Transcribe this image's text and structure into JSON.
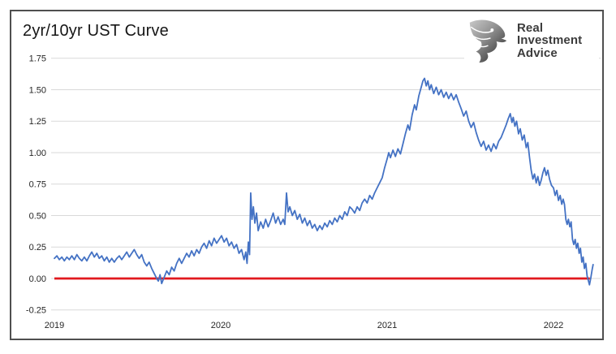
{
  "title": "2yr/10yr UST Curve",
  "logo": {
    "icon": "eagle-icon",
    "line1": "Real",
    "line2": "Investment",
    "line3": "Advice"
  },
  "chart_data": {
    "type": "line",
    "title": "2yr/10yr UST Curve",
    "xlabel": "",
    "ylabel": "",
    "grid": "horizontal",
    "legend": "none",
    "ylim": [
      -0.25,
      1.75
    ],
    "xlim": [
      2019.0,
      2022.35
    ],
    "y_ticks": [
      {
        "label": "1.75",
        "value": 1.75
      },
      {
        "label": "1.50",
        "value": 1.5
      },
      {
        "label": "1.25",
        "value": 1.25
      },
      {
        "label": "1.00",
        "value": 1.0
      },
      {
        "label": "0.75",
        "value": 0.75
      },
      {
        "label": "0.50",
        "value": 0.5
      },
      {
        "label": "0.25",
        "value": 0.25
      },
      {
        "label": "0.00",
        "value": 0.0
      },
      {
        "label": "-0.25",
        "value": -0.25
      }
    ],
    "x_ticks": [
      {
        "label": "2019",
        "value": 2019
      },
      {
        "label": "2020",
        "value": 2020
      },
      {
        "label": "2021",
        "value": 2021
      },
      {
        "label": "2022",
        "value": 2022
      }
    ],
    "colors": {
      "spread_line": "#4472c4",
      "zero_line": "#e1181e",
      "gridline": "#d9d9d9",
      "axis_text": "#262626"
    },
    "series": [
      {
        "name": "2yr/10yr UST spread",
        "color": "#4472c4",
        "points": [
          [
            2019.0,
            0.16
          ],
          [
            2019.015,
            0.18
          ],
          [
            2019.03,
            0.15
          ],
          [
            2019.045,
            0.17
          ],
          [
            2019.06,
            0.14
          ],
          [
            2019.075,
            0.17
          ],
          [
            2019.09,
            0.15
          ],
          [
            2019.105,
            0.18
          ],
          [
            2019.12,
            0.15
          ],
          [
            2019.135,
            0.19
          ],
          [
            2019.15,
            0.16
          ],
          [
            2019.165,
            0.14
          ],
          [
            2019.18,
            0.17
          ],
          [
            2019.195,
            0.14
          ],
          [
            2019.21,
            0.18
          ],
          [
            2019.225,
            0.21
          ],
          [
            2019.24,
            0.17
          ],
          [
            2019.255,
            0.2
          ],
          [
            2019.27,
            0.16
          ],
          [
            2019.285,
            0.18
          ],
          [
            2019.3,
            0.14
          ],
          [
            2019.315,
            0.17
          ],
          [
            2019.33,
            0.13
          ],
          [
            2019.345,
            0.16
          ],
          [
            2019.36,
            0.13
          ],
          [
            2019.375,
            0.16
          ],
          [
            2019.39,
            0.18
          ],
          [
            2019.405,
            0.15
          ],
          [
            2019.42,
            0.18
          ],
          [
            2019.435,
            0.21
          ],
          [
            2019.45,
            0.17
          ],
          [
            2019.465,
            0.2
          ],
          [
            2019.48,
            0.23
          ],
          [
            2019.495,
            0.19
          ],
          [
            2019.51,
            0.16
          ],
          [
            2019.525,
            0.19
          ],
          [
            2019.54,
            0.13
          ],
          [
            2019.555,
            0.1
          ],
          [
            2019.57,
            0.13
          ],
          [
            2019.585,
            0.08
          ],
          [
            2019.6,
            0.04
          ],
          [
            2019.615,
            0.0
          ],
          [
            2019.625,
            -0.02
          ],
          [
            2019.635,
            0.03
          ],
          [
            2019.645,
            -0.04
          ],
          [
            2019.66,
            0.01
          ],
          [
            2019.675,
            0.06
          ],
          [
            2019.69,
            0.03
          ],
          [
            2019.705,
            0.09
          ],
          [
            2019.72,
            0.06
          ],
          [
            2019.735,
            0.12
          ],
          [
            2019.75,
            0.16
          ],
          [
            2019.765,
            0.12
          ],
          [
            2019.78,
            0.16
          ],
          [
            2019.795,
            0.2
          ],
          [
            2019.81,
            0.17
          ],
          [
            2019.825,
            0.22
          ],
          [
            2019.84,
            0.18
          ],
          [
            2019.855,
            0.23
          ],
          [
            2019.87,
            0.2
          ],
          [
            2019.885,
            0.25
          ],
          [
            2019.9,
            0.28
          ],
          [
            2019.915,
            0.24
          ],
          [
            2019.93,
            0.3
          ],
          [
            2019.945,
            0.26
          ],
          [
            2019.96,
            0.32
          ],
          [
            2019.975,
            0.28
          ],
          [
            2019.99,
            0.31
          ],
          [
            2020.005,
            0.34
          ],
          [
            2020.02,
            0.29
          ],
          [
            2020.035,
            0.32
          ],
          [
            2020.05,
            0.26
          ],
          [
            2020.065,
            0.29
          ],
          [
            2020.08,
            0.24
          ],
          [
            2020.095,
            0.27
          ],
          [
            2020.11,
            0.2
          ],
          [
            2020.125,
            0.23
          ],
          [
            2020.14,
            0.15
          ],
          [
            2020.15,
            0.21
          ],
          [
            2020.158,
            0.12
          ],
          [
            2020.166,
            0.29
          ],
          [
            2020.173,
            0.19
          ],
          [
            2020.18,
            0.68
          ],
          [
            2020.188,
            0.47
          ],
          [
            2020.196,
            0.57
          ],
          [
            2020.205,
            0.44
          ],
          [
            2020.215,
            0.52
          ],
          [
            2020.225,
            0.38
          ],
          [
            2020.24,
            0.45
          ],
          [
            2020.255,
            0.4
          ],
          [
            2020.27,
            0.47
          ],
          [
            2020.285,
            0.41
          ],
          [
            2020.3,
            0.46
          ],
          [
            2020.315,
            0.52
          ],
          [
            2020.33,
            0.44
          ],
          [
            2020.345,
            0.49
          ],
          [
            2020.36,
            0.43
          ],
          [
            2020.375,
            0.47
          ],
          [
            2020.385,
            0.43
          ],
          [
            2020.395,
            0.68
          ],
          [
            2020.405,
            0.53
          ],
          [
            2020.415,
            0.57
          ],
          [
            2020.43,
            0.5
          ],
          [
            2020.445,
            0.54
          ],
          [
            2020.46,
            0.47
          ],
          [
            2020.475,
            0.51
          ],
          [
            2020.49,
            0.44
          ],
          [
            2020.505,
            0.48
          ],
          [
            2020.52,
            0.42
          ],
          [
            2020.535,
            0.46
          ],
          [
            2020.55,
            0.4
          ],
          [
            2020.565,
            0.43
          ],
          [
            2020.58,
            0.38
          ],
          [
            2020.595,
            0.42
          ],
          [
            2020.61,
            0.39
          ],
          [
            2020.625,
            0.44
          ],
          [
            2020.64,
            0.41
          ],
          [
            2020.655,
            0.46
          ],
          [
            2020.67,
            0.43
          ],
          [
            2020.685,
            0.48
          ],
          [
            2020.7,
            0.45
          ],
          [
            2020.715,
            0.5
          ],
          [
            2020.73,
            0.47
          ],
          [
            2020.745,
            0.53
          ],
          [
            2020.76,
            0.5
          ],
          [
            2020.775,
            0.57
          ],
          [
            2020.79,
            0.55
          ],
          [
            2020.805,
            0.52
          ],
          [
            2020.82,
            0.57
          ],
          [
            2020.835,
            0.54
          ],
          [
            2020.85,
            0.6
          ],
          [
            2020.865,
            0.63
          ],
          [
            2020.88,
            0.6
          ],
          [
            2020.895,
            0.66
          ],
          [
            2020.91,
            0.63
          ],
          [
            2020.925,
            0.68
          ],
          [
            2020.94,
            0.72
          ],
          [
            2020.955,
            0.76
          ],
          [
            2020.97,
            0.8
          ],
          [
            2020.985,
            0.88
          ],
          [
            2021.0,
            0.95
          ],
          [
            2021.01,
            1.0
          ],
          [
            2021.02,
            0.96
          ],
          [
            2021.035,
            1.02
          ],
          [
            2021.05,
            0.97
          ],
          [
            2021.065,
            1.03
          ],
          [
            2021.08,
            0.99
          ],
          [
            2021.095,
            1.07
          ],
          [
            2021.11,
            1.15
          ],
          [
            2021.125,
            1.22
          ],
          [
            2021.135,
            1.18
          ],
          [
            2021.15,
            1.3
          ],
          [
            2021.165,
            1.38
          ],
          [
            2021.175,
            1.34
          ],
          [
            2021.19,
            1.45
          ],
          [
            2021.205,
            1.52
          ],
          [
            2021.215,
            1.57
          ],
          [
            2021.225,
            1.59
          ],
          [
            2021.235,
            1.53
          ],
          [
            2021.245,
            1.57
          ],
          [
            2021.255,
            1.5
          ],
          [
            2021.265,
            1.54
          ],
          [
            2021.28,
            1.47
          ],
          [
            2021.295,
            1.52
          ],
          [
            2021.31,
            1.46
          ],
          [
            2021.325,
            1.5
          ],
          [
            2021.34,
            1.44
          ],
          [
            2021.355,
            1.48
          ],
          [
            2021.37,
            1.43
          ],
          [
            2021.385,
            1.47
          ],
          [
            2021.4,
            1.42
          ],
          [
            2021.415,
            1.46
          ],
          [
            2021.43,
            1.4
          ],
          [
            2021.445,
            1.35
          ],
          [
            2021.46,
            1.29
          ],
          [
            2021.475,
            1.33
          ],
          [
            2021.49,
            1.25
          ],
          [
            2021.505,
            1.2
          ],
          [
            2021.52,
            1.24
          ],
          [
            2021.535,
            1.16
          ],
          [
            2021.55,
            1.1
          ],
          [
            2021.565,
            1.05
          ],
          [
            2021.58,
            1.09
          ],
          [
            2021.595,
            1.02
          ],
          [
            2021.61,
            1.06
          ],
          [
            2021.625,
            1.01
          ],
          [
            2021.64,
            1.07
          ],
          [
            2021.655,
            1.03
          ],
          [
            2021.67,
            1.09
          ],
          [
            2021.685,
            1.12
          ],
          [
            2021.7,
            1.17
          ],
          [
            2021.715,
            1.22
          ],
          [
            2021.728,
            1.27
          ],
          [
            2021.74,
            1.31
          ],
          [
            2021.75,
            1.24
          ],
          [
            2021.758,
            1.28
          ],
          [
            2021.768,
            1.21
          ],
          [
            2021.778,
            1.25
          ],
          [
            2021.79,
            1.15
          ],
          [
            2021.8,
            1.19
          ],
          [
            2021.812,
            1.1
          ],
          [
            2021.824,
            1.14
          ],
          [
            2021.836,
            1.04
          ],
          [
            2021.846,
            1.08
          ],
          [
            2021.856,
            0.96
          ],
          [
            2021.866,
            0.86
          ],
          [
            2021.876,
            0.79
          ],
          [
            2021.886,
            0.83
          ],
          [
            2021.896,
            0.76
          ],
          [
            2021.906,
            0.81
          ],
          [
            2021.916,
            0.74
          ],
          [
            2021.926,
            0.78
          ],
          [
            2021.936,
            0.84
          ],
          [
            2021.946,
            0.88
          ],
          [
            2021.956,
            0.82
          ],
          [
            2021.966,
            0.86
          ],
          [
            2021.976,
            0.79
          ],
          [
            2021.988,
            0.74
          ],
          [
            2022.0,
            0.72
          ],
          [
            2022.01,
            0.66
          ],
          [
            2022.02,
            0.7
          ],
          [
            2022.03,
            0.62
          ],
          [
            2022.04,
            0.66
          ],
          [
            2022.05,
            0.59
          ],
          [
            2022.058,
            0.63
          ],
          [
            2022.066,
            0.59
          ],
          [
            2022.074,
            0.47
          ],
          [
            2022.082,
            0.43
          ],
          [
            2022.09,
            0.47
          ],
          [
            2022.098,
            0.41
          ],
          [
            2022.106,
            0.45
          ],
          [
            2022.114,
            0.31
          ],
          [
            2022.122,
            0.27
          ],
          [
            2022.13,
            0.31
          ],
          [
            2022.138,
            0.24
          ],
          [
            2022.146,
            0.28
          ],
          [
            2022.154,
            0.2
          ],
          [
            2022.162,
            0.24
          ],
          [
            2022.17,
            0.13
          ],
          [
            2022.178,
            0.17
          ],
          [
            2022.186,
            0.08
          ],
          [
            2022.194,
            0.12
          ],
          [
            2022.202,
            0.02
          ],
          [
            2022.21,
            -0.02
          ],
          [
            2022.216,
            -0.05
          ],
          [
            2022.225,
            0.01
          ],
          [
            2022.232,
            0.07
          ],
          [
            2022.238,
            0.11
          ]
        ]
      },
      {
        "name": "zero-line",
        "color": "#e1181e",
        "points": [
          [
            2019.0,
            0.0
          ],
          [
            2022.218,
            0.0
          ]
        ]
      }
    ]
  }
}
